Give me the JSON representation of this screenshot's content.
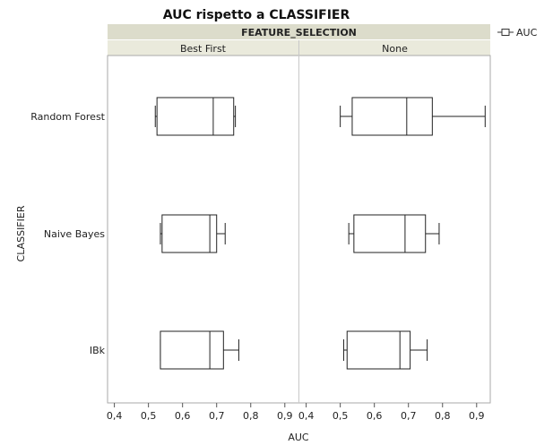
{
  "chart_data": {
    "type": "boxplot",
    "title": "AUC rispetto a CLASSIFIER",
    "facet_title": "FEATURE_SELECTION",
    "panels": [
      "Best First",
      "None"
    ],
    "xlabel": "AUC",
    "ylabel": "CLASSIFIER",
    "xlim": [
      0.38,
      0.94
    ],
    "xticks": [
      0.4,
      0.5,
      0.6,
      0.7,
      0.8,
      0.9
    ],
    "xtick_labels": [
      "0,4",
      "0,5",
      "0,6",
      "0,7",
      "0,8",
      "0,9"
    ],
    "categories": [
      "Random Forest",
      "Naive Bayes",
      "IBk"
    ],
    "legend": {
      "label": "AUC",
      "position": "top-right"
    },
    "boxes": {
      "Best First": {
        "Random Forest": {
          "min": 0.52,
          "q1": 0.525,
          "median": 0.69,
          "q3": 0.75,
          "max": 0.755
        },
        "Naive Bayes": {
          "min": 0.535,
          "q1": 0.54,
          "median": 0.68,
          "q3": 0.7,
          "max": 0.725
        },
        "IBk": {
          "min": 0.535,
          "q1": 0.535,
          "median": 0.68,
          "q3": 0.72,
          "max": 0.765
        }
      },
      "None": {
        "Random Forest": {
          "min": 0.5,
          "q1": 0.535,
          "median": 0.695,
          "q3": 0.77,
          "max": 0.925
        },
        "Naive Bayes": {
          "min": 0.525,
          "q1": 0.54,
          "median": 0.69,
          "q3": 0.75,
          "max": 0.79
        },
        "IBk": {
          "min": 0.51,
          "q1": 0.52,
          "median": 0.675,
          "q3": 0.705,
          "max": 0.755
        }
      }
    }
  }
}
